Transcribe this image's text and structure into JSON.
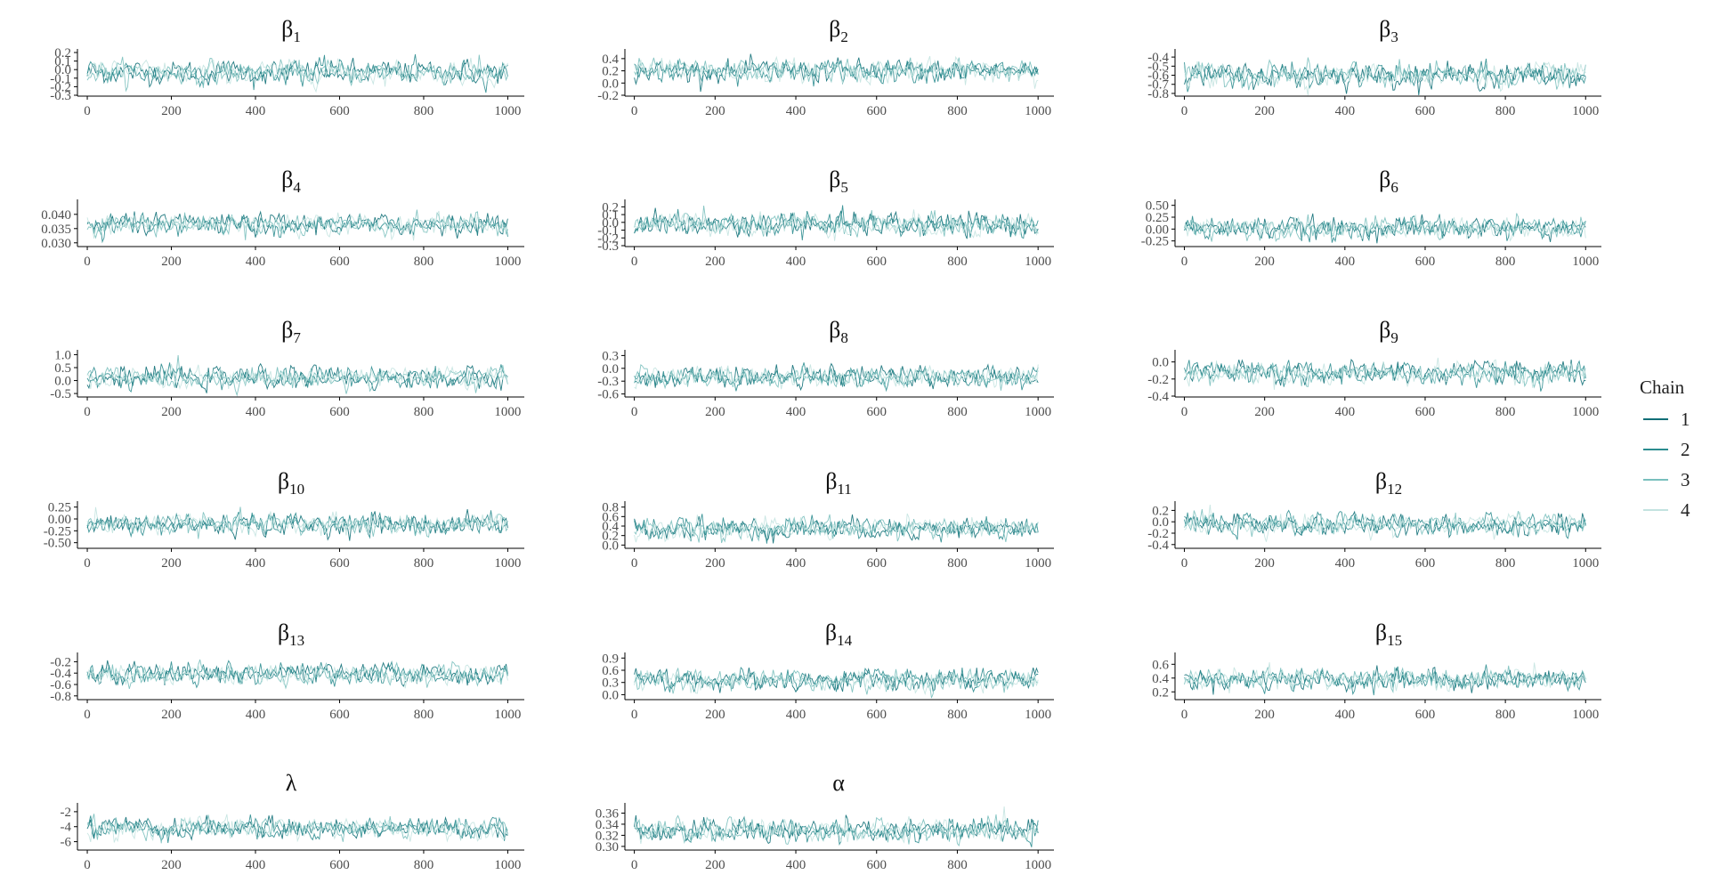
{
  "legend": {
    "title": "Chain",
    "items": [
      {
        "label": "1",
        "color": "#0d6e76"
      },
      {
        "label": "2",
        "color": "#2b8c8f"
      },
      {
        "label": "3",
        "color": "#79bfbd"
      },
      {
        "label": "4",
        "color": "#c3e3e0"
      }
    ]
  },
  "chart_data": [
    {
      "type": "line",
      "title": "β",
      "subscript": "1",
      "x_range": [
        0,
        1000
      ],
      "x_ticks": [
        "0",
        "200",
        "400",
        "600",
        "800",
        "1000"
      ],
      "y_ticks": [
        "-0.3",
        "-0.2",
        "-0.1",
        "0.0",
        "0.1",
        "0.2"
      ],
      "ylim": [
        -0.3,
        0.2
      ],
      "center": -0.03,
      "spread": 0.075,
      "series": [
        {
          "name": "1"
        },
        {
          "name": "2"
        },
        {
          "name": "3"
        },
        {
          "name": "4"
        }
      ]
    },
    {
      "type": "line",
      "title": "β",
      "subscript": "2",
      "x_range": [
        0,
        1000
      ],
      "x_ticks": [
        "0",
        "200",
        "400",
        "600",
        "800",
        "1000"
      ],
      "y_ticks": [
        "-0.2",
        "0.0",
        "0.2",
        "0.4"
      ],
      "ylim": [
        -0.2,
        0.5
      ],
      "center": 0.2,
      "spread": 0.1,
      "series": [
        {
          "name": "1"
        },
        {
          "name": "2"
        },
        {
          "name": "3"
        },
        {
          "name": "4"
        }
      ]
    },
    {
      "type": "line",
      "title": "β",
      "subscript": "3",
      "x_range": [
        0,
        1000
      ],
      "x_ticks": [
        "0",
        "200",
        "400",
        "600",
        "800",
        "1000"
      ],
      "y_ticks": [
        "-0.8",
        "-0.7",
        "-0.6",
        "-0.5",
        "-0.4"
      ],
      "ylim": [
        -0.82,
        -0.35
      ],
      "center": -0.6,
      "spread": 0.07,
      "series": [
        {
          "name": "1"
        },
        {
          "name": "2"
        },
        {
          "name": "3"
        },
        {
          "name": "4"
        }
      ]
    },
    {
      "type": "line",
      "title": "β",
      "subscript": "4",
      "x_range": [
        0,
        1000
      ],
      "x_ticks": [
        "0",
        "200",
        "400",
        "600",
        "800",
        "1000"
      ],
      "y_ticks": [
        "0.030",
        "0.035",
        "0.040"
      ],
      "ylim": [
        0.029,
        0.044
      ],
      "center": 0.0365,
      "spread": 0.002,
      "series": [
        {
          "name": "1"
        },
        {
          "name": "2"
        },
        {
          "name": "3"
        },
        {
          "name": "4"
        }
      ]
    },
    {
      "type": "line",
      "title": "β",
      "subscript": "5",
      "x_range": [
        0,
        1000
      ],
      "x_ticks": [
        "0",
        "200",
        "400",
        "600",
        "800",
        "1000"
      ],
      "y_ticks": [
        "-0.3",
        "-0.2",
        "-0.1",
        "0.0",
        "0.1",
        "0.2"
      ],
      "ylim": [
        -0.3,
        0.25
      ],
      "center": -0.03,
      "spread": 0.08,
      "series": [
        {
          "name": "1"
        },
        {
          "name": "2"
        },
        {
          "name": "3"
        },
        {
          "name": "4"
        }
      ]
    },
    {
      "type": "line",
      "title": "β",
      "subscript": "6",
      "x_range": [
        0,
        1000
      ],
      "x_ticks": [
        "0",
        "200",
        "400",
        "600",
        "800",
        "1000"
      ],
      "y_ticks": [
        "-0.25",
        "0.00",
        "0.25",
        "0.50"
      ],
      "ylim": [
        -0.35,
        0.55
      ],
      "center": 0.02,
      "spread": 0.12,
      "series": [
        {
          "name": "1"
        },
        {
          "name": "2"
        },
        {
          "name": "3"
        },
        {
          "name": "4"
        }
      ]
    },
    {
      "type": "line",
      "title": "β",
      "subscript": "7",
      "x_range": [
        0,
        1000
      ],
      "x_ticks": [
        "0",
        "200",
        "400",
        "600",
        "800",
        "1000"
      ],
      "y_ticks": [
        "-0.5",
        "0.0",
        "0.5",
        "1.0"
      ],
      "ylim": [
        -0.6,
        1.05
      ],
      "center": 0.1,
      "spread": 0.22,
      "series": [
        {
          "name": "1"
        },
        {
          "name": "2"
        },
        {
          "name": "3"
        },
        {
          "name": "4"
        }
      ]
    },
    {
      "type": "line",
      "title": "β",
      "subscript": "8",
      "x_range": [
        0,
        1000
      ],
      "x_ticks": [
        "0",
        "200",
        "400",
        "600",
        "800",
        "1000"
      ],
      "y_ticks": [
        "-0.6",
        "-0.3",
        "0.0",
        "0.3"
      ],
      "ylim": [
        -0.65,
        0.35
      ],
      "center": -0.2,
      "spread": 0.13,
      "series": [
        {
          "name": "1"
        },
        {
          "name": "2"
        },
        {
          "name": "3"
        },
        {
          "name": "4"
        }
      ]
    },
    {
      "type": "line",
      "title": "β",
      "subscript": "9",
      "x_range": [
        0,
        1000
      ],
      "x_ticks": [
        "0",
        "200",
        "400",
        "600",
        "800",
        "1000"
      ],
      "y_ticks": [
        "-0.4",
        "-0.2",
        "0.0"
      ],
      "ylim": [
        -0.4,
        0.1
      ],
      "center": -0.13,
      "spread": 0.07,
      "series": [
        {
          "name": "1"
        },
        {
          "name": "2"
        },
        {
          "name": "3"
        },
        {
          "name": "4"
        }
      ]
    },
    {
      "type": "line",
      "title": "β",
      "subscript": "10",
      "x_range": [
        0,
        1000
      ],
      "x_ticks": [
        "0",
        "200",
        "400",
        "600",
        "800",
        "1000"
      ],
      "y_ticks": [
        "-0.50",
        "-0.25",
        "0.00",
        "0.25"
      ],
      "ylim": [
        -0.6,
        0.3
      ],
      "center": -0.12,
      "spread": 0.12,
      "series": [
        {
          "name": "1"
        },
        {
          "name": "2"
        },
        {
          "name": "3"
        },
        {
          "name": "4"
        }
      ]
    },
    {
      "type": "line",
      "title": "β",
      "subscript": "11",
      "x_range": [
        0,
        1000
      ],
      "x_ticks": [
        "0",
        "200",
        "400",
        "600",
        "800",
        "1000"
      ],
      "y_ticks": [
        "0.0",
        "0.2",
        "0.4",
        "0.6",
        "0.8"
      ],
      "ylim": [
        -0.05,
        0.85
      ],
      "center": 0.35,
      "spread": 0.12,
      "series": [
        {
          "name": "1"
        },
        {
          "name": "2"
        },
        {
          "name": "3"
        },
        {
          "name": "4"
        }
      ]
    },
    {
      "type": "line",
      "title": "β",
      "subscript": "12",
      "x_range": [
        0,
        1000
      ],
      "x_ticks": [
        "0",
        "200",
        "400",
        "600",
        "800",
        "1000"
      ],
      "y_ticks": [
        "-0.4",
        "-0.2",
        "0.0",
        "0.2"
      ],
      "ylim": [
        -0.45,
        0.3
      ],
      "center": -0.05,
      "spread": 0.1,
      "series": [
        {
          "name": "1"
        },
        {
          "name": "2"
        },
        {
          "name": "3"
        },
        {
          "name": "4"
        }
      ]
    },
    {
      "type": "line",
      "title": "β",
      "subscript": "13",
      "x_range": [
        0,
        1000
      ],
      "x_ticks": [
        "0",
        "200",
        "400",
        "600",
        "800",
        "1000"
      ],
      "y_ticks": [
        "-0.8",
        "-0.6",
        "-0.4",
        "-0.2"
      ],
      "ylim": [
        -0.85,
        -0.1
      ],
      "center": -0.42,
      "spread": 0.1,
      "series": [
        {
          "name": "1"
        },
        {
          "name": "2"
        },
        {
          "name": "3"
        },
        {
          "name": "4"
        }
      ]
    },
    {
      "type": "line",
      "title": "β",
      "subscript": "14",
      "x_range": [
        0,
        1000
      ],
      "x_ticks": [
        "0",
        "200",
        "400",
        "600",
        "800",
        "1000"
      ],
      "y_ticks": [
        "0.0",
        "0.3",
        "0.6",
        "0.9"
      ],
      "ylim": [
        -0.1,
        0.95
      ],
      "center": 0.35,
      "spread": 0.14,
      "series": [
        {
          "name": "1"
        },
        {
          "name": "2"
        },
        {
          "name": "3"
        },
        {
          "name": "4"
        }
      ]
    },
    {
      "type": "line",
      "title": "β",
      "subscript": "15",
      "x_range": [
        0,
        1000
      ],
      "x_ticks": [
        "0",
        "200",
        "400",
        "600",
        "800",
        "1000"
      ],
      "y_ticks": [
        "0.2",
        "0.4",
        "0.6"
      ],
      "ylim": [
        0.1,
        0.72
      ],
      "center": 0.38,
      "spread": 0.08,
      "series": [
        {
          "name": "1"
        },
        {
          "name": "2"
        },
        {
          "name": "3"
        },
        {
          "name": "4"
        }
      ]
    },
    {
      "type": "line",
      "title": "λ",
      "subscript": "",
      "x_range": [
        0,
        1000
      ],
      "x_ticks": [
        "0",
        "200",
        "400",
        "600",
        "800",
        "1000"
      ],
      "y_ticks": [
        "-6",
        "-4",
        "-2"
      ],
      "ylim": [
        -7,
        -1.3
      ],
      "center": -4.2,
      "spread": 0.75,
      "series": [
        {
          "name": "1"
        },
        {
          "name": "2"
        },
        {
          "name": "3"
        },
        {
          "name": "4"
        }
      ]
    },
    {
      "type": "line",
      "title": "α",
      "subscript": "",
      "x_range": [
        0,
        1000
      ],
      "x_ticks": [
        "0",
        "200",
        "400",
        "600",
        "800",
        "1000"
      ],
      "y_ticks": [
        "0.30",
        "0.32",
        "0.34",
        "0.36"
      ],
      "ylim": [
        0.295,
        0.372
      ],
      "center": 0.328,
      "spread": 0.011,
      "series": [
        {
          "name": "1"
        },
        {
          "name": "2"
        },
        {
          "name": "3"
        },
        {
          "name": "4"
        }
      ]
    }
  ]
}
